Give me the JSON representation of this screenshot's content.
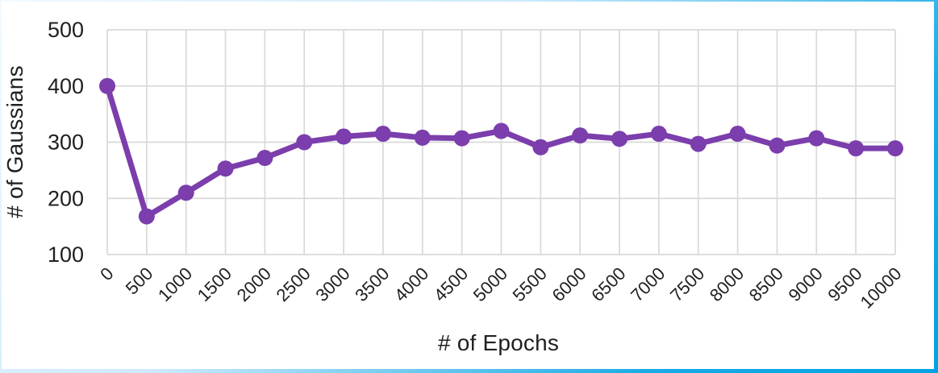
{
  "frame": {
    "border_color": "#00a3e4",
    "border_light_color": "#f2faff",
    "background": "#ffffff"
  },
  "chart_data": {
    "type": "line",
    "title": "",
    "xlabel": "# of Epochs",
    "ylabel": "# of Gaussians",
    "x": [
      0,
      500,
      1000,
      1500,
      2000,
      2500,
      3000,
      3500,
      4000,
      4500,
      5000,
      5500,
      6000,
      6500,
      7000,
      7500,
      8000,
      8500,
      9000,
      9500,
      10000
    ],
    "values": [
      400,
      168,
      210,
      253,
      272,
      300,
      310,
      315,
      308,
      307,
      320,
      291,
      312,
      306,
      315,
      297,
      315,
      294,
      307,
      289,
      289
    ],
    "series_name": "# of Gaussians",
    "ylim": [
      100,
      500
    ],
    "y_ticks": [
      100,
      200,
      300,
      400,
      500
    ],
    "x_tick_step": 500,
    "grid": true,
    "legend": "none",
    "line_color": "#7b3eac",
    "marker_color": "#7b3eac",
    "gridline_color": "#d9d9d9",
    "text_color": "#212121",
    "marker_radius": 10,
    "line_width": 7
  }
}
